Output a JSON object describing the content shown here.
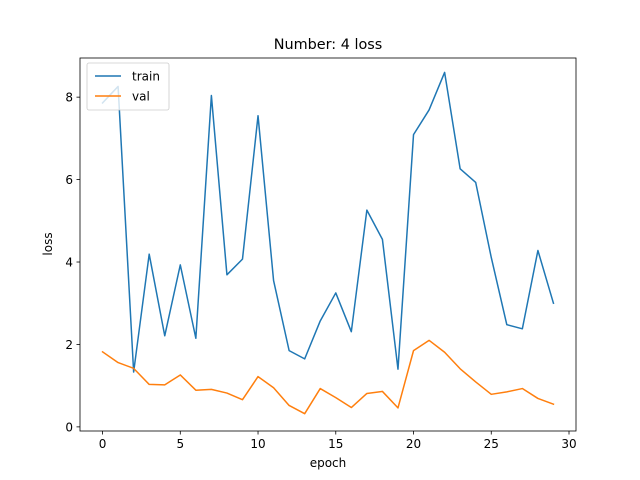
{
  "chart_data": {
    "type": "line",
    "title": "Number: 4 loss",
    "xlabel": "epoch",
    "ylabel": "loss",
    "xlim": [
      -1.45,
      30.45
    ],
    "ylim": [
      -0.1,
      8.95
    ],
    "x_ticks": [
      0,
      5,
      10,
      15,
      20,
      25,
      30
    ],
    "y_ticks": [
      0,
      2,
      4,
      6,
      8
    ],
    "grid": false,
    "legend_position": "top-left",
    "x": [
      0,
      1,
      2,
      3,
      4,
      5,
      6,
      7,
      8,
      9,
      10,
      11,
      12,
      13,
      14,
      15,
      16,
      17,
      18,
      19,
      20,
      21,
      22,
      23,
      24,
      25,
      26,
      27,
      28,
      29
    ],
    "series": [
      {
        "name": "train",
        "color": "#1f77b4",
        "values": [
          7.86,
          8.26,
          1.33,
          4.19,
          2.21,
          3.93,
          2.15,
          8.04,
          3.69,
          4.07,
          7.55,
          3.55,
          1.85,
          1.65,
          2.57,
          3.25,
          2.31,
          5.26,
          4.55,
          1.4,
          7.09,
          7.69,
          8.6,
          6.26,
          5.93,
          4.11,
          2.48,
          2.38,
          4.28,
          3.0
        ]
      },
      {
        "name": "val",
        "color": "#ff7f0e",
        "values": [
          1.82,
          1.56,
          1.42,
          1.03,
          1.02,
          1.26,
          0.89,
          0.91,
          0.82,
          0.66,
          1.22,
          0.95,
          0.52,
          0.32,
          0.93,
          0.71,
          0.47,
          0.81,
          0.86,
          0.46,
          1.85,
          2.1,
          1.81,
          1.41,
          1.09,
          0.79,
          0.85,
          0.93,
          0.69,
          0.55
        ]
      }
    ]
  }
}
